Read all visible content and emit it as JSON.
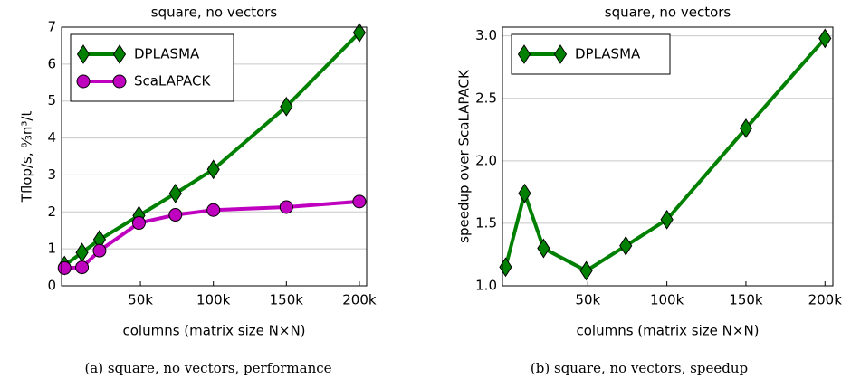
{
  "chart_data": [
    {
      "type": "line",
      "title": "square, no vectors",
      "caption": "(a) square, no vectors, performance",
      "xlabel": "columns (matrix size N×N)",
      "ylabel": "Tflop/s, ⁸⁄₃n³/t",
      "x": [
        -2000,
        10000,
        22000,
        49000,
        74000,
        100000,
        150000,
        200000
      ],
      "series": [
        {
          "name": "DPLASMA",
          "color": "#008000",
          "marker": "diamond",
          "values": [
            0.55,
            0.9,
            1.25,
            1.9,
            2.5,
            3.15,
            4.85,
            6.85
          ]
        },
        {
          "name": "ScaLAPACK",
          "color": "#bf00bf",
          "marker": "circle",
          "values": [
            0.48,
            0.5,
            0.95,
            1.7,
            1.92,
            2.05,
            2.13,
            2.28
          ]
        }
      ],
      "xlim": [
        -4000,
        205000
      ],
      "xticks": [
        {
          "value": 50000,
          "label": "50k"
        },
        {
          "value": 100000,
          "label": "100k"
        },
        {
          "value": 150000,
          "label": "150k"
        },
        {
          "value": 200000,
          "label": "200k"
        }
      ],
      "ylim": [
        0,
        7
      ],
      "yticks": [
        0,
        1,
        2,
        3,
        4,
        5,
        6,
        7
      ],
      "grid": true,
      "legend": "upper left"
    },
    {
      "type": "line",
      "title": "square, no vectors",
      "caption": "(b) square, no vectors, speedup",
      "xlabel": "columns (matrix size N×N)",
      "ylabel": "speedup over ScaLAPACK",
      "x": [
        -2000,
        10000,
        22000,
        49000,
        74000,
        100000,
        150000,
        200000
      ],
      "series": [
        {
          "name": "DPLASMA",
          "color": "#008000",
          "marker": "diamond",
          "values": [
            1.15,
            1.74,
            1.3,
            1.12,
            1.32,
            1.53,
            2.26,
            2.98
          ]
        }
      ],
      "xlim": [
        -4000,
        205000
      ],
      "xticks": [
        {
          "value": 50000,
          "label": "50k"
        },
        {
          "value": 100000,
          "label": "100k"
        },
        {
          "value": 150000,
          "label": "150k"
        },
        {
          "value": 200000,
          "label": "200k"
        }
      ],
      "ylim": [
        1.0,
        3.07
      ],
      "yticks": [
        {
          "value": 1.0,
          "label": "1.0"
        },
        1.5,
        {
          "value": 2.0,
          "label": "2.0"
        },
        2.5,
        {
          "value": 3.0,
          "label": "3.0"
        }
      ],
      "grid": true,
      "legend": "upper left"
    }
  ]
}
